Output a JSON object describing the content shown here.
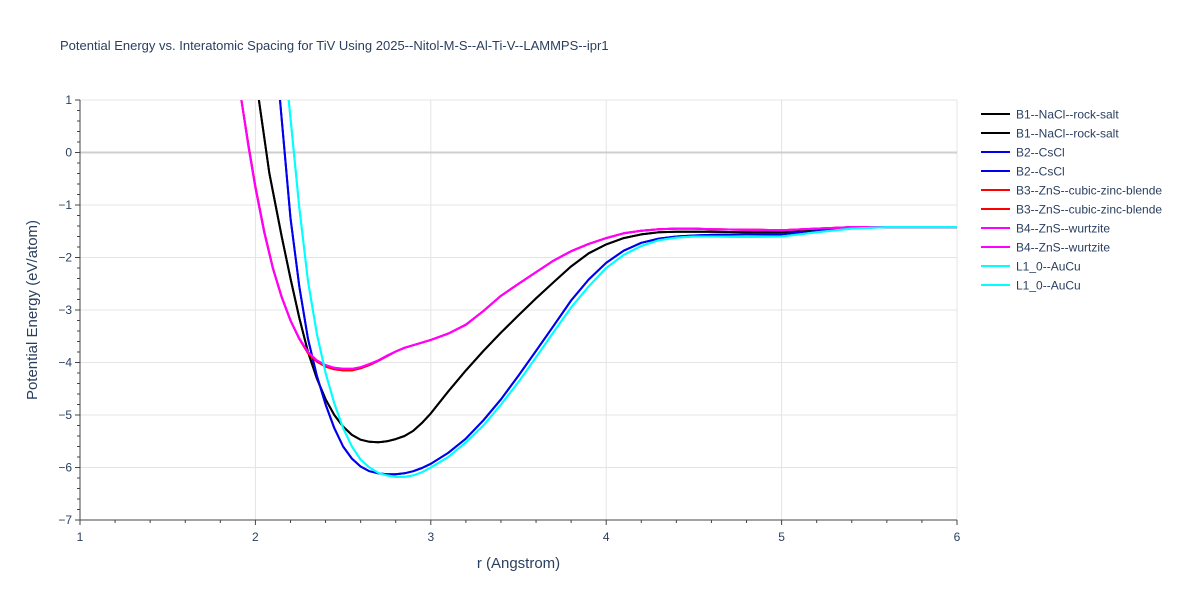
{
  "chart_data": {
    "type": "line",
    "title": "Potential Energy vs. Interatomic Spacing for TiV Using 2025--Nitol-M-S--Al-Ti-V--LAMMPS--ipr1",
    "xlabel": "r (Angstrom)",
    "ylabel": "Potential Energy (eV/atom)",
    "xlim": [
      1,
      6
    ],
    "ylim": [
      -7,
      1
    ],
    "x_ticks": [
      1,
      2,
      3,
      4,
      5,
      6
    ],
    "x_tick_labels": [
      "1",
      "2",
      "3",
      "4",
      "5",
      "6"
    ],
    "y_ticks": [
      1,
      0,
      -1,
      -2,
      -3,
      -4,
      -5,
      -6,
      -7
    ],
    "y_tick_labels": [
      "1",
      "0",
      "−1",
      "−2",
      "−3",
      "−4",
      "−5",
      "−6",
      "−7"
    ],
    "grid": true,
    "legend_position": "top-right",
    "series": [
      {
        "name": "B1--NaCl--rock-salt",
        "color": "#000000",
        "x": [
          2.02,
          2.08,
          2.15,
          2.2,
          2.25,
          2.3,
          2.35,
          2.4,
          2.45,
          2.5,
          2.55,
          2.6,
          2.65,
          2.7,
          2.75,
          2.8,
          2.85,
          2.9,
          2.95,
          3.0,
          3.1,
          3.2,
          3.3,
          3.4,
          3.5,
          3.6,
          3.7,
          3.8,
          3.9,
          4.0,
          4.1,
          4.2,
          4.3,
          4.4,
          4.5,
          4.6,
          4.8,
          5.0,
          5.2,
          5.4,
          5.6,
          5.8,
          6.0
        ],
        "y": [
          1.0,
          -0.4,
          -1.6,
          -2.4,
          -3.15,
          -3.8,
          -4.3,
          -4.7,
          -5.0,
          -5.22,
          -5.38,
          -5.47,
          -5.51,
          -5.52,
          -5.5,
          -5.46,
          -5.4,
          -5.3,
          -5.15,
          -4.97,
          -4.55,
          -4.15,
          -3.78,
          -3.43,
          -3.1,
          -2.78,
          -2.47,
          -2.17,
          -1.92,
          -1.75,
          -1.63,
          -1.56,
          -1.52,
          -1.51,
          -1.51,
          -1.51,
          -1.52,
          -1.52,
          -1.47,
          -1.42,
          -1.42,
          -1.42,
          -1.42
        ]
      },
      {
        "name": "B1--NaCl--rock-salt",
        "color": "#000000",
        "x": [
          2.02,
          2.08,
          2.15,
          2.2,
          2.25,
          2.3,
          2.35,
          2.4,
          2.45,
          2.5,
          2.55,
          2.6,
          2.65,
          2.7,
          2.75,
          2.8,
          2.85,
          2.9,
          2.95,
          3.0,
          3.1,
          3.2,
          3.3,
          3.4,
          3.5,
          3.6,
          3.7,
          3.8,
          3.9,
          4.0,
          4.1,
          4.2,
          4.3,
          4.4,
          4.5,
          4.6,
          4.8,
          5.0,
          5.2,
          5.4,
          5.6,
          5.8,
          6.0
        ],
        "y": [
          1.0,
          -0.4,
          -1.6,
          -2.4,
          -3.15,
          -3.8,
          -4.3,
          -4.7,
          -5.0,
          -5.22,
          -5.38,
          -5.47,
          -5.51,
          -5.52,
          -5.5,
          -5.46,
          -5.4,
          -5.3,
          -5.15,
          -4.97,
          -4.55,
          -4.15,
          -3.78,
          -3.43,
          -3.1,
          -2.78,
          -2.47,
          -2.17,
          -1.92,
          -1.75,
          -1.63,
          -1.56,
          -1.52,
          -1.51,
          -1.51,
          -1.51,
          -1.52,
          -1.52,
          -1.47,
          -1.42,
          -1.42,
          -1.42,
          -1.42
        ]
      },
      {
        "name": "B2--CsCl",
        "color": "#0000ee",
        "x": [
          2.14,
          2.2,
          2.25,
          2.3,
          2.35,
          2.4,
          2.45,
          2.5,
          2.55,
          2.6,
          2.65,
          2.7,
          2.75,
          2.8,
          2.85,
          2.9,
          2.95,
          3.0,
          3.1,
          3.2,
          3.3,
          3.4,
          3.5,
          3.6,
          3.7,
          3.8,
          3.9,
          4.0,
          4.1,
          4.2,
          4.3,
          4.4,
          4.5,
          4.6,
          4.8,
          5.0,
          5.2,
          5.4,
          5.6,
          5.8,
          6.0
        ],
        "y": [
          1.0,
          -1.25,
          -2.55,
          -3.55,
          -4.25,
          -4.8,
          -5.25,
          -5.6,
          -5.83,
          -5.98,
          -6.07,
          -6.11,
          -6.13,
          -6.13,
          -6.11,
          -6.07,
          -6.01,
          -5.93,
          -5.72,
          -5.45,
          -5.1,
          -4.7,
          -4.25,
          -3.78,
          -3.3,
          -2.82,
          -2.42,
          -2.1,
          -1.87,
          -1.72,
          -1.64,
          -1.6,
          -1.58,
          -1.57,
          -1.56,
          -1.56,
          -1.5,
          -1.44,
          -1.42,
          -1.42,
          -1.42
        ]
      },
      {
        "name": "B2--CsCl",
        "color": "#0000ee",
        "x": [
          2.14,
          2.2,
          2.25,
          2.3,
          2.35,
          2.4,
          2.45,
          2.5,
          2.55,
          2.6,
          2.65,
          2.7,
          2.75,
          2.8,
          2.85,
          2.9,
          2.95,
          3.0,
          3.1,
          3.2,
          3.3,
          3.4,
          3.5,
          3.6,
          3.7,
          3.8,
          3.9,
          4.0,
          4.1,
          4.2,
          4.3,
          4.4,
          4.5,
          4.6,
          4.8,
          5.0,
          5.2,
          5.4,
          5.6,
          5.8,
          6.0
        ],
        "y": [
          1.0,
          -1.25,
          -2.55,
          -3.55,
          -4.25,
          -4.8,
          -5.25,
          -5.6,
          -5.83,
          -5.98,
          -6.07,
          -6.11,
          -6.13,
          -6.13,
          -6.11,
          -6.07,
          -6.01,
          -5.93,
          -5.72,
          -5.45,
          -5.1,
          -4.7,
          -4.25,
          -3.78,
          -3.3,
          -2.82,
          -2.42,
          -2.1,
          -1.87,
          -1.72,
          -1.64,
          -1.6,
          -1.58,
          -1.57,
          -1.56,
          -1.56,
          -1.5,
          -1.44,
          -1.42,
          -1.42,
          -1.42
        ]
      },
      {
        "name": "B3--ZnS--cubic-zinc-blende",
        "color": "#ff0000",
        "x": [
          1.92,
          1.96,
          2.0,
          2.05,
          2.1,
          2.15,
          2.2,
          2.25,
          2.3,
          2.35,
          2.4,
          2.45,
          2.5,
          2.55,
          2.6,
          2.65,
          2.7,
          2.75,
          2.8,
          2.85,
          2.9,
          3.0,
          3.1,
          3.2,
          3.3,
          3.4,
          3.5,
          3.6,
          3.7,
          3.8,
          3.9,
          4.0,
          4.1,
          4.2,
          4.3,
          4.4,
          4.5,
          4.6,
          4.8,
          5.0,
          5.2,
          5.4,
          5.6,
          5.8,
          6.0
        ],
        "y": [
          1.0,
          0.15,
          -0.65,
          -1.5,
          -2.2,
          -2.75,
          -3.2,
          -3.55,
          -3.82,
          -3.98,
          -4.08,
          -4.13,
          -4.15,
          -4.15,
          -4.11,
          -4.05,
          -3.97,
          -3.88,
          -3.79,
          -3.72,
          -3.67,
          -3.57,
          -3.45,
          -3.28,
          -3.02,
          -2.73,
          -2.5,
          -2.28,
          -2.06,
          -1.88,
          -1.74,
          -1.63,
          -1.54,
          -1.49,
          -1.46,
          -1.45,
          -1.45,
          -1.46,
          -1.47,
          -1.48,
          -1.45,
          -1.42,
          -1.42,
          -1.42,
          -1.42
        ]
      },
      {
        "name": "B3--ZnS--cubic-zinc-blende",
        "color": "#ff0000",
        "x": [
          1.92,
          1.96,
          2.0,
          2.05,
          2.1,
          2.15,
          2.2,
          2.25,
          2.3,
          2.35,
          2.4,
          2.45,
          2.5,
          2.55,
          2.6,
          2.65,
          2.7,
          2.75,
          2.8,
          2.85,
          2.9,
          3.0,
          3.1,
          3.2,
          3.3,
          3.4,
          3.5,
          3.6,
          3.7,
          3.8,
          3.9,
          4.0,
          4.1,
          4.2,
          4.3,
          4.4,
          4.5,
          4.6,
          4.8,
          5.0,
          5.2,
          5.4,
          5.6,
          5.8,
          6.0
        ],
        "y": [
          1.0,
          0.15,
          -0.65,
          -1.5,
          -2.2,
          -2.75,
          -3.2,
          -3.55,
          -3.82,
          -3.98,
          -4.08,
          -4.13,
          -4.15,
          -4.15,
          -4.11,
          -4.05,
          -3.97,
          -3.88,
          -3.79,
          -3.72,
          -3.67,
          -3.57,
          -3.45,
          -3.28,
          -3.02,
          -2.73,
          -2.5,
          -2.28,
          -2.06,
          -1.88,
          -1.74,
          -1.63,
          -1.54,
          -1.49,
          -1.46,
          -1.45,
          -1.45,
          -1.46,
          -1.47,
          -1.48,
          -1.45,
          -1.42,
          -1.42,
          -1.42,
          -1.42
        ]
      },
      {
        "name": "B4--ZnS--wurtzite",
        "color": "#ff00ff",
        "x": [
          1.92,
          1.96,
          2.0,
          2.05,
          2.1,
          2.15,
          2.2,
          2.25,
          2.3,
          2.35,
          2.4,
          2.45,
          2.5,
          2.55,
          2.6,
          2.65,
          2.7,
          2.75,
          2.8,
          2.85,
          2.9,
          3.0,
          3.1,
          3.2,
          3.3,
          3.4,
          3.5,
          3.6,
          3.7,
          3.8,
          3.9,
          4.0,
          4.1,
          4.2,
          4.3,
          4.4,
          4.5,
          4.6,
          4.8,
          5.0,
          5.2,
          5.4,
          5.6,
          5.8,
          6.0
        ],
        "y": [
          1.0,
          0.12,
          -0.67,
          -1.52,
          -2.21,
          -2.76,
          -3.2,
          -3.54,
          -3.8,
          -3.96,
          -4.05,
          -4.1,
          -4.12,
          -4.12,
          -4.09,
          -4.03,
          -3.96,
          -3.87,
          -3.79,
          -3.72,
          -3.67,
          -3.57,
          -3.45,
          -3.28,
          -3.02,
          -2.73,
          -2.5,
          -2.28,
          -2.06,
          -1.88,
          -1.74,
          -1.63,
          -1.54,
          -1.49,
          -1.46,
          -1.45,
          -1.45,
          -1.46,
          -1.47,
          -1.48,
          -1.45,
          -1.42,
          -1.42,
          -1.42,
          -1.42
        ]
      },
      {
        "name": "B4--ZnS--wurtzite",
        "color": "#ff00ff",
        "x": [
          1.92,
          1.96,
          2.0,
          2.05,
          2.1,
          2.15,
          2.2,
          2.25,
          2.3,
          2.35,
          2.4,
          2.45,
          2.5,
          2.55,
          2.6,
          2.65,
          2.7,
          2.75,
          2.8,
          2.85,
          2.9,
          3.0,
          3.1,
          3.2,
          3.3,
          3.4,
          3.5,
          3.6,
          3.7,
          3.8,
          3.9,
          4.0,
          4.1,
          4.2,
          4.3,
          4.4,
          4.5,
          4.6,
          4.8,
          5.0,
          5.2,
          5.4,
          5.6,
          5.8,
          6.0
        ],
        "y": [
          1.0,
          0.12,
          -0.67,
          -1.52,
          -2.21,
          -2.76,
          -3.2,
          -3.54,
          -3.8,
          -3.96,
          -4.05,
          -4.1,
          -4.12,
          -4.12,
          -4.09,
          -4.03,
          -3.96,
          -3.87,
          -3.79,
          -3.72,
          -3.67,
          -3.57,
          -3.45,
          -3.28,
          -3.02,
          -2.73,
          -2.5,
          -2.28,
          -2.06,
          -1.88,
          -1.74,
          -1.63,
          -1.54,
          -1.49,
          -1.46,
          -1.45,
          -1.45,
          -1.46,
          -1.47,
          -1.48,
          -1.45,
          -1.42,
          -1.42,
          -1.42,
          -1.42
        ]
      },
      {
        "name": "L1_0--AuCu",
        "color": "#00ffff",
        "x": [
          2.19,
          2.25,
          2.3,
          2.35,
          2.4,
          2.45,
          2.5,
          2.55,
          2.6,
          2.65,
          2.7,
          2.75,
          2.8,
          2.85,
          2.9,
          2.95,
          3.0,
          3.1,
          3.2,
          3.3,
          3.4,
          3.5,
          3.6,
          3.7,
          3.8,
          3.9,
          4.0,
          4.1,
          4.2,
          4.3,
          4.4,
          4.5,
          4.6,
          4.8,
          5.0,
          5.2,
          5.4,
          5.6,
          5.8,
          6.0
        ],
        "y": [
          1.0,
          -1.05,
          -2.45,
          -3.45,
          -4.2,
          -4.78,
          -5.25,
          -5.6,
          -5.85,
          -6.0,
          -6.1,
          -6.15,
          -6.18,
          -6.18,
          -6.15,
          -6.09,
          -6.0,
          -5.8,
          -5.52,
          -5.2,
          -4.8,
          -4.37,
          -3.9,
          -3.42,
          -2.95,
          -2.55,
          -2.2,
          -1.95,
          -1.78,
          -1.67,
          -1.62,
          -1.6,
          -1.6,
          -1.61,
          -1.6,
          -1.52,
          -1.45,
          -1.42,
          -1.42,
          -1.42
        ]
      },
      {
        "name": "L1_0--AuCu",
        "color": "#00ffff",
        "x": [
          2.19,
          2.25,
          2.3,
          2.35,
          2.4,
          2.45,
          2.5,
          2.55,
          2.6,
          2.65,
          2.7,
          2.75,
          2.8,
          2.85,
          2.9,
          2.95,
          3.0,
          3.1,
          3.2,
          3.3,
          3.4,
          3.5,
          3.6,
          3.7,
          3.8,
          3.9,
          4.0,
          4.1,
          4.2,
          4.3,
          4.4,
          4.5,
          4.6,
          4.8,
          5.0,
          5.2,
          5.4,
          5.6,
          5.8,
          6.0
        ],
        "y": [
          1.0,
          -1.05,
          -2.45,
          -3.45,
          -4.2,
          -4.78,
          -5.25,
          -5.6,
          -5.85,
          -6.0,
          -6.1,
          -6.15,
          -6.18,
          -6.18,
          -6.15,
          -6.09,
          -6.0,
          -5.8,
          -5.52,
          -5.2,
          -4.8,
          -4.37,
          -3.9,
          -3.42,
          -2.95,
          -2.55,
          -2.2,
          -1.95,
          -1.78,
          -1.67,
          -1.62,
          -1.6,
          -1.6,
          -1.61,
          -1.6,
          -1.52,
          -1.45,
          -1.42,
          -1.42,
          -1.42
        ]
      }
    ]
  }
}
